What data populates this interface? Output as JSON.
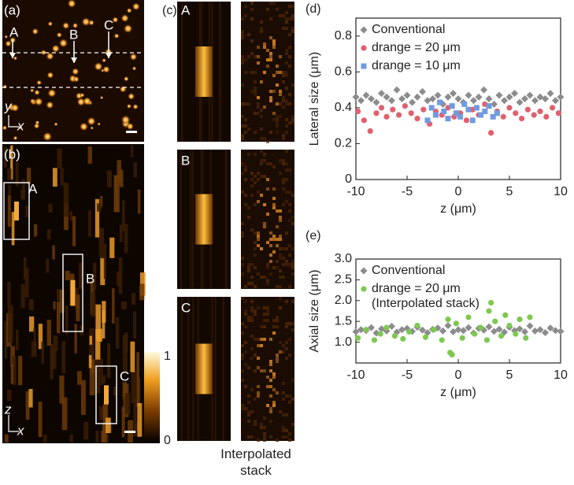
{
  "panels": {
    "a": {
      "label": "(a)",
      "markers": [
        "A",
        "B",
        "C"
      ],
      "axes": [
        "y",
        "x"
      ]
    },
    "b": {
      "label": "(b)",
      "markers": [
        "A",
        "B",
        "C"
      ],
      "axes": [
        "z",
        "x"
      ]
    },
    "c": {
      "label": "(c)",
      "markers": [
        "A",
        "B",
        "C"
      ],
      "caption": "Interpolated stack"
    },
    "colorbar": {
      "ticks": [
        "1",
        "0"
      ]
    }
  },
  "chart_data": [
    {
      "type": "scatter",
      "panel_label": "(d)",
      "x_label": "z (μm)",
      "y_label": "Lateral size (μm)",
      "xlim": [
        -10,
        10
      ],
      "xticks": [
        -10,
        -5,
        0,
        5,
        10
      ],
      "ylim": [
        0,
        0.9
      ],
      "yticks": [
        0,
        0.2,
        0.4,
        0.6,
        0.8
      ],
      "series": [
        {
          "name": "Conventional",
          "color": "#8c8c8c",
          "marker": "diamond",
          "x": [
            -10,
            -9.5,
            -9,
            -8.5,
            -8,
            -7.5,
            -7,
            -6.5,
            -6,
            -5.5,
            -5,
            -4.5,
            -4,
            -3.5,
            -3,
            -2.5,
            -2,
            -1.5,
            -1,
            -0.5,
            0,
            0.5,
            1,
            1.5,
            2,
            2.5,
            3,
            3.5,
            4,
            4.5,
            5,
            5.5,
            6,
            6.5,
            7,
            7.5,
            8,
            8.5,
            9,
            9.5,
            10
          ],
          "values": [
            0.46,
            0.44,
            0.47,
            0.45,
            0.43,
            0.48,
            0.46,
            0.44,
            0.5,
            0.45,
            0.47,
            0.43,
            0.46,
            0.49,
            0.44,
            0.45,
            0.47,
            0.42,
            0.46,
            0.48,
            0.45,
            0.43,
            0.47,
            0.44,
            0.46,
            0.5,
            0.45,
            0.42,
            0.47,
            0.44,
            0.46,
            0.48,
            0.43,
            0.45,
            0.47,
            0.44,
            0.46,
            0.45,
            0.48,
            0.44,
            0.46
          ]
        },
        {
          "name": "drange = 20 μm",
          "color": "#e0606e",
          "marker": "circle",
          "x": [
            -9.8,
            -9.2,
            -8.6,
            -8,
            -7.5,
            -7,
            -6.4,
            -5.8,
            -5.2,
            -4.6,
            -4,
            -3.4,
            -2.8,
            -2.2,
            -1.6,
            -1,
            -0.4,
            0.2,
            0.8,
            1.4,
            2,
            2.6,
            3.2,
            3.8,
            4.4,
            5,
            5.6,
            6.2,
            6.8,
            7.4,
            8,
            8.6,
            9.2,
            9.8
          ],
          "values": [
            0.38,
            0.33,
            0.27,
            0.37,
            0.4,
            0.35,
            0.39,
            0.36,
            0.41,
            0.37,
            0.34,
            0.39,
            0.31,
            0.38,
            0.36,
            0.4,
            0.35,
            0.37,
            0.33,
            0.39,
            0.36,
            0.42,
            0.26,
            0.38,
            0.35,
            0.4,
            0.37,
            0.34,
            0.39,
            0.36,
            0.38,
            0.35,
            0.4,
            0.37
          ]
        },
        {
          "name": "drange = 10 μm",
          "color": "#6f9be0",
          "marker": "square",
          "x": [
            -3,
            -2.6,
            -2.2,
            -1.8,
            -1.4,
            -1,
            -0.6,
            -0.2,
            0.2,
            0.6,
            1,
            1.4,
            1.8,
            2.2,
            2.6,
            3,
            3.4,
            3.8
          ],
          "values": [
            0.33,
            0.4,
            0.36,
            0.43,
            0.38,
            0.34,
            0.41,
            0.37,
            0.35,
            0.42,
            0.39,
            0.33,
            0.4,
            0.36,
            0.38,
            0.41,
            0.35,
            0.37
          ]
        }
      ]
    },
    {
      "type": "scatter",
      "panel_label": "(e)",
      "x_label": "z (μm)",
      "y_label": "Axial size (μm)",
      "annotation": "(Interpolated stack)",
      "xlim": [
        -10,
        10
      ],
      "xticks": [
        -10,
        -5,
        0,
        5,
        10
      ],
      "ylim": [
        0.5,
        3.0
      ],
      "yticks": [
        {
          "value": 1,
          "label": "1.0"
        },
        1.5,
        {
          "value": 2,
          "label": "2.0"
        },
        2.5,
        {
          "value": 3,
          "label": "3.0"
        }
      ],
      "series": [
        {
          "name": "Conventional",
          "color": "#8c8c8c",
          "marker": "diamond",
          "x": [
            -10,
            -9.5,
            -9,
            -8.5,
            -8,
            -7.5,
            -7,
            -6.5,
            -6,
            -5.5,
            -5,
            -4.5,
            -4,
            -3.5,
            -3,
            -2.5,
            -2,
            -1.5,
            -1,
            -0.5,
            0,
            0.5,
            1,
            1.5,
            2,
            2.5,
            3,
            3.5,
            4,
            4.5,
            5,
            5.5,
            6,
            6.5,
            7,
            7.5,
            8,
            8.5,
            9,
            9.5,
            10
          ],
          "values": [
            1.25,
            1.3,
            1.28,
            1.35,
            1.22,
            1.32,
            1.27,
            1.38,
            1.24,
            1.3,
            1.33,
            1.26,
            1.36,
            1.29,
            1.23,
            1.31,
            1.34,
            1.27,
            1.4,
            1.25,
            1.3,
            1.28,
            1.35,
            1.22,
            1.33,
            1.29,
            1.37,
            1.26,
            1.31,
            1.24,
            1.36,
            1.28,
            1.32,
            1.25,
            1.39,
            1.27,
            1.3,
            1.23,
            1.34,
            1.28,
            1.26
          ]
        },
        {
          "name": "drange = 20 μm",
          "color": "#7ec850",
          "marker": "circle",
          "x": [
            -9.8,
            -9,
            -8.2,
            -7.6,
            -7,
            -6.2,
            -5.4,
            -4.8,
            -4,
            -3.2,
            -2.4,
            -1.6,
            -1,
            -0.8,
            -0.6,
            -0.2,
            0.4,
            1,
            1.6,
            2.2,
            2.8,
            3,
            3.2,
            3.6,
            4.2,
            4.6,
            5,
            5.6,
            6,
            6.6,
            7
          ],
          "values": [
            1.1,
            1.3,
            1.05,
            1.2,
            1.35,
            1.15,
            1.08,
            1.25,
            1.4,
            1.12,
            1.3,
            1.05,
            1.55,
            0.75,
            0.7,
            1.45,
            1.1,
            1.6,
            1.2,
            1.35,
            1.05,
            1.75,
            1.95,
            1.5,
            1.15,
            1.65,
            1.4,
            1.2,
            1.55,
            1.1,
            1.6
          ]
        }
      ]
    }
  ]
}
